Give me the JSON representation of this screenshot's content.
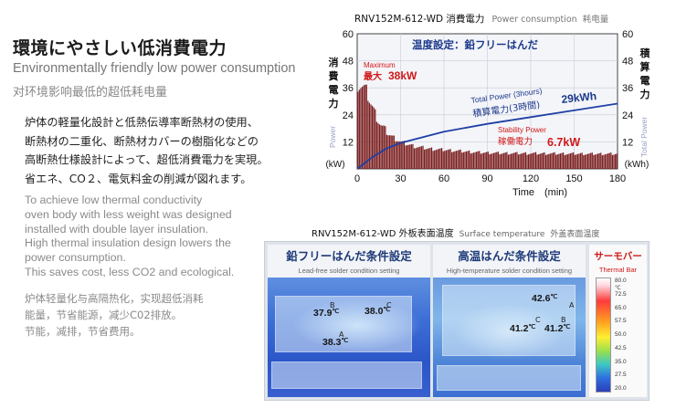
{
  "heading": {
    "ja": "環境にやさしい低消費電力",
    "en": "Environmentally friendly low power consumption",
    "zh": "对环境影响最低的超低耗电量"
  },
  "body": {
    "ja_lines": [
      "炉体の軽量化設計と低熱伝導率断熱材の使用、",
      "断熱材の二重化、断熱材カバーの樹脂化などの",
      "高断熱仕様設計によって、超低消費電力を実現。",
      "省エネ、CO２、電気料金の削減が図れます。"
    ],
    "en_lines": [
      "To achieve low thermal conductivity",
      "oven body with less weight was designed",
      "installed with double layer insulation.",
      "High thermal insulation design lowers the",
      "power consumption.",
      "This saves cost, less CO2 and ecological."
    ],
    "zh_lines": [
      "炉体轻量化与高隔热化，实现超低消耗",
      "能量，节省能源，减少C02排放。",
      "节能，减排，节省费用。"
    ]
  },
  "power_caption": {
    "model": "RNV152M-612-WD 消費電力",
    "en": "Power consumption",
    "zh": "耗电量"
  },
  "chart_data": {
    "type": "bar",
    "title": "温度設定：鉛フリーはんだ",
    "xlabel": "Time　(min)",
    "x_ticks": [
      0,
      30,
      60,
      90,
      120,
      150,
      180
    ],
    "xlim": [
      0,
      180
    ],
    "ylim": [
      0,
      60
    ],
    "y_ticks": [
      12,
      24,
      36,
      48,
      60
    ],
    "y_left_label": [
      "消",
      "費",
      "電",
      "力"
    ],
    "y_left_sub": "Power",
    "y_left_unit": "(kW)",
    "y_right_label": [
      "積",
      "算",
      "電",
      "力"
    ],
    "y_right_sub": "Total Power",
    "y_right_unit": "(kWh)",
    "bar_color": "#7a1c1c",
    "curve_color": "#1f3fa3",
    "bars_minutes_kw": [
      [
        1,
        38
      ],
      [
        3,
        37
      ],
      [
        5,
        36
      ],
      [
        7,
        34
      ],
      [
        9,
        30
      ],
      [
        11,
        27
      ],
      [
        13,
        24
      ],
      [
        15,
        21
      ],
      [
        17,
        19
      ],
      [
        19,
        18
      ],
      [
        21,
        16
      ],
      [
        23,
        15
      ],
      [
        25,
        14
      ],
      [
        28,
        13
      ],
      [
        30,
        12
      ],
      [
        35,
        11
      ],
      [
        40,
        10
      ],
      [
        45,
        9.5
      ],
      [
        50,
        9
      ],
      [
        60,
        8.5
      ],
      [
        70,
        8
      ],
      [
        80,
        7.5
      ],
      [
        90,
        7.2
      ],
      [
        100,
        7
      ],
      [
        120,
        6.9
      ],
      [
        140,
        6.8
      ],
      [
        160,
        6.7
      ],
      [
        180,
        6.7
      ]
    ],
    "total_power_kwh": [
      [
        0,
        0
      ],
      [
        10,
        5
      ],
      [
        20,
        9
      ],
      [
        30,
        11.5
      ],
      [
        60,
        16.5
      ],
      [
        90,
        20
      ],
      [
        120,
        23
      ],
      [
        150,
        26
      ],
      [
        180,
        29
      ]
    ],
    "annotations": {
      "max_en": "Maximum",
      "max_ja": "最大",
      "max_value": "38kW",
      "total_en": "Total Power (3hours)",
      "total_ja": "積算電力(3時間)",
      "total_value": "29kWh",
      "stab_en": "Stability Power",
      "stab_ja": "稼働電力",
      "stab_value": "6.7kW"
    }
  },
  "thermal": {
    "caption_model": "RNV152M-612-WD 外板表面温度",
    "caption_en": "Surface temperature",
    "caption_zh": "外盖表面温度",
    "panel1": {
      "title": "鉛フリーはんだ条件設定",
      "subtitle": "Lead-free solder condition setting",
      "t1": "37.9",
      "t2": "38.0",
      "t3": "38.3"
    },
    "panel2": {
      "title": "高温はんだ条件設定",
      "subtitle": "High-temperature solder condition setting",
      "t1": "42.6",
      "t2": "41.2",
      "t3": "41.2"
    },
    "deg": "℃",
    "marker_a": "A",
    "marker_b": "B",
    "marker_c": "C",
    "legend_title": "サーモバー",
    "legend_en": "Thermal Bar",
    "legend_unit": "℃",
    "legend_ticks": [
      "80.0",
      "72.5",
      "65.0",
      "57.5",
      "50.0",
      "42.5",
      "35.0",
      "27.5",
      "20.0"
    ]
  }
}
